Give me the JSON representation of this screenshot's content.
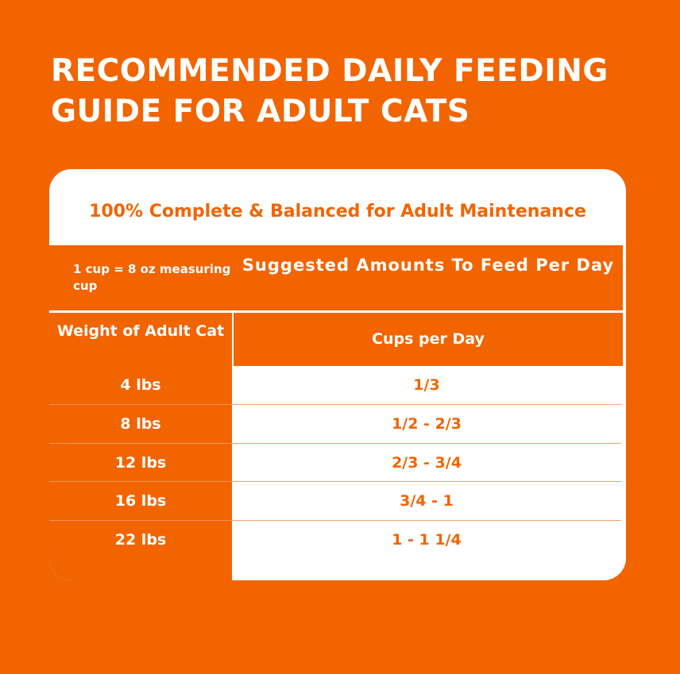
{
  "title": "RECOMMENDED DAILY FEEDING GUIDE FOR ADULT CATS",
  "subtitle": "100% Complete & Balanced for Adult Maintenance",
  "measure_note": "1 cup = 8 oz measuring cup",
  "suggested_header": "Suggested Amounts To Feed Per Day",
  "table": {
    "headers": [
      "Weight of Adult Cat",
      "Cups per Day"
    ],
    "rows": [
      {
        "weight": "4 lbs",
        "cups": "1/3"
      },
      {
        "weight": "8 lbs",
        "cups": "1/2 - 2/3"
      },
      {
        "weight": "12 lbs",
        "cups": "2/3 - 3/4"
      },
      {
        "weight": "16 lbs",
        "cups": "3/4 - 1"
      },
      {
        "weight": "22 lbs",
        "cups": "1 - 1 1/4"
      }
    ]
  },
  "colors": {
    "accent": "#f26400",
    "card": "#ffffff",
    "text_light": "#ffffff"
  }
}
